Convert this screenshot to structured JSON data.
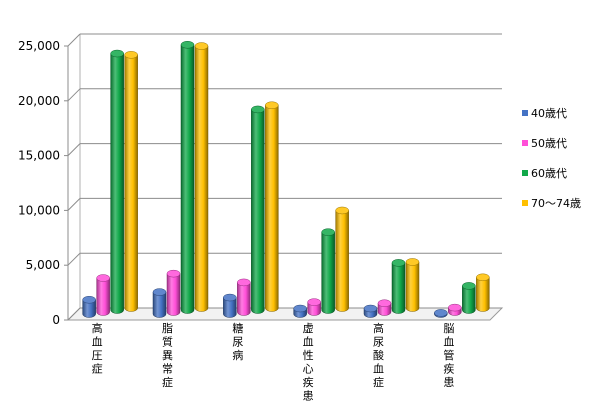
{
  "chart_data": {
    "type": "bar",
    "title": "",
    "xlabel": "",
    "ylabel": "",
    "ylim": [
      0,
      25000
    ],
    "yticks": [
      "0",
      "5,000",
      "10,000",
      "15,000",
      "20,000",
      "25,000"
    ],
    "ytick_values": [
      0,
      5000,
      10000,
      15000,
      20000,
      25000
    ],
    "categories": [
      "高血圧症",
      "脂質異常症",
      "糖尿病",
      "虚血性心疾患",
      "高尿酸血症",
      "脳血管疾患"
    ],
    "series": [
      {
        "name": "40歳代",
        "color": "#4472C4",
        "values": [
          1300,
          2000,
          1500,
          500,
          500,
          100
        ]
      },
      {
        "name": "50歳代",
        "color": "#FF4FD8",
        "values": [
          3100,
          3500,
          2700,
          900,
          800,
          400
        ]
      },
      {
        "name": "60歳代",
        "color": "#11A84A",
        "values": [
          23400,
          24200,
          18300,
          7100,
          4300,
          2200
        ]
      },
      {
        "name": "70～74歳",
        "color": "#FFC000",
        "values": [
          23100,
          23900,
          18500,
          8900,
          4200,
          2800
        ]
      }
    ],
    "grid": true,
    "legend_position": "right",
    "style": "3d-cylinder"
  }
}
